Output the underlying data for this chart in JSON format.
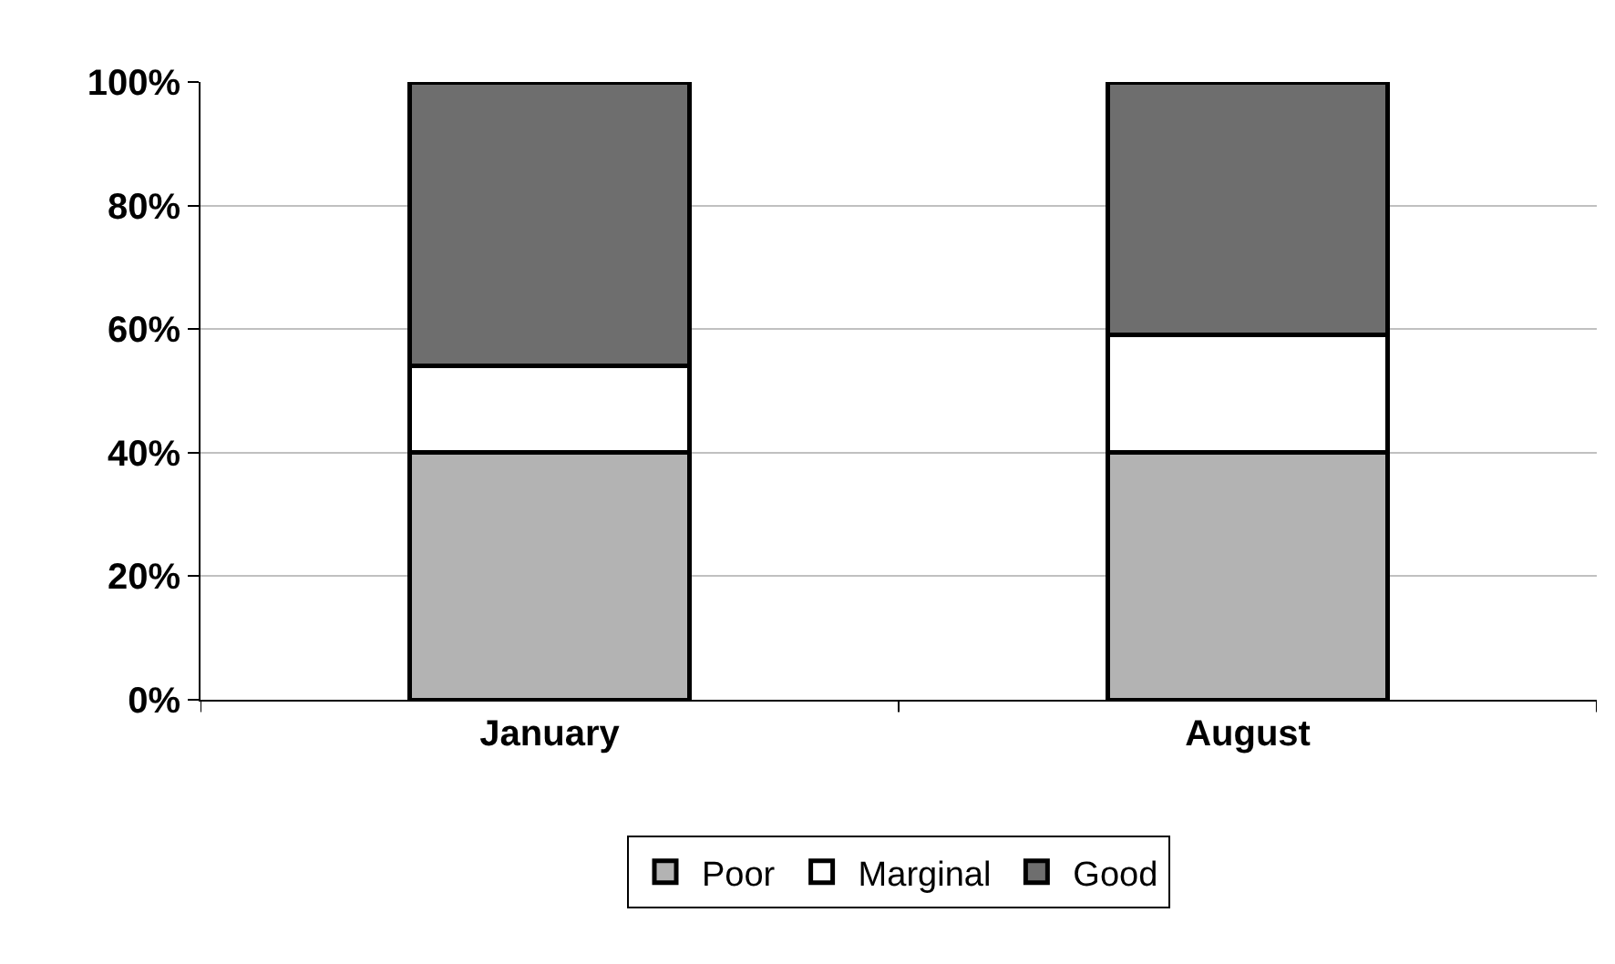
{
  "chart_data": {
    "type": "bar",
    "stacked": true,
    "categories": [
      "January",
      "August"
    ],
    "series": [
      {
        "name": "Poor",
        "color": "#b3b3b3",
        "values": [
          40,
          40
        ]
      },
      {
        "name": "Marginal",
        "color": "#ffffff",
        "values": [
          14,
          19
        ]
      },
      {
        "name": "Good",
        "color": "#6e6e6e",
        "values": [
          46,
          41
        ]
      }
    ],
    "ylim": [
      0,
      100
    ],
    "yticks": [
      {
        "value": 0,
        "label": "0%"
      },
      {
        "value": 20,
        "label": "20%"
      },
      {
        "value": 40,
        "label": "40%"
      },
      {
        "value": 60,
        "label": "60%"
      },
      {
        "value": 80,
        "label": "80%"
      },
      {
        "value": 100,
        "label": "100%"
      }
    ],
    "grid": "y",
    "legend": "bottom"
  }
}
